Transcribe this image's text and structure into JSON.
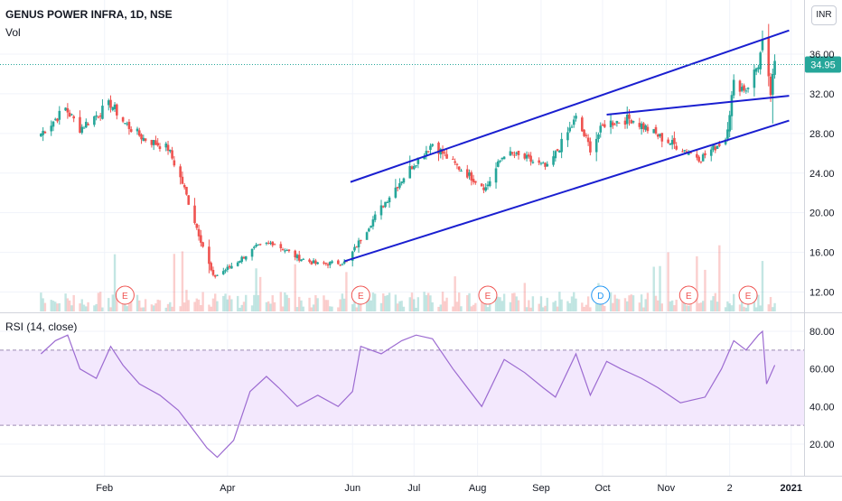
{
  "header": {
    "symbol_line": "GENUS POWER INFRA, 1D, NSE",
    "volume_label": "Vol",
    "rsi_label": "RSI (14, close)",
    "currency_button": "INR"
  },
  "colors": {
    "up": "#26a69a",
    "down": "#ef5350",
    "trendline": "#1a1fd0",
    "rsi_line": "#9c6bd1",
    "rsi_band": "#f3e8fd",
    "last_price": "#26a69a"
  },
  "chart_data": [
    {
      "type": "candlestick",
      "title": "GENUS POWER INFRA, 1D, NSE",
      "ylim": [
        11,
        39
      ],
      "y_ticks": [
        "12.00",
        "16.00",
        "20.00",
        "24.00",
        "28.00",
        "32.00",
        "36.00"
      ],
      "x_ticks": [
        "Feb",
        "Apr",
        "Jun",
        "Jul",
        "Aug",
        "Sep",
        "Oct",
        "Nov",
        "2",
        "2021"
      ],
      "last_price": "34.95",
      "anchor_closes": [
        [
          "2020-01-01",
          28.0
        ],
        [
          "2020-01-13",
          30.5
        ],
        [
          "2020-01-20",
          28.5
        ],
        [
          "2020-02-04",
          31.0
        ],
        [
          "2020-02-11",
          29.0
        ],
        [
          "2020-02-20",
          27.5
        ],
        [
          "2020-03-03",
          26.5
        ],
        [
          "2020-03-10",
          23.0
        ],
        [
          "2020-03-17",
          18.5
        ],
        [
          "2020-03-25",
          13.5
        ],
        [
          "2020-04-02",
          14.5
        ],
        [
          "2020-04-15",
          16.5
        ],
        [
          "2020-04-23",
          17.0
        ],
        [
          "2020-05-05",
          15.5
        ],
        [
          "2020-05-15",
          14.8
        ],
        [
          "2020-05-29",
          15.0
        ],
        [
          "2020-06-10",
          19.0
        ],
        [
          "2020-06-20",
          22.0
        ],
        [
          "2020-07-01",
          25.0
        ],
        [
          "2020-07-10",
          27.0
        ],
        [
          "2020-07-20",
          25.0
        ],
        [
          "2020-08-05",
          22.5
        ],
        [
          "2020-08-14",
          26.0
        ],
        [
          "2020-08-24",
          25.5
        ],
        [
          "2020-09-04",
          24.5
        ],
        [
          "2020-09-18",
          29.5
        ],
        [
          "2020-09-25",
          26.5
        ],
        [
          "2020-10-02",
          29.0
        ],
        [
          "2020-10-15",
          29.5
        ],
        [
          "2020-10-30",
          27.5
        ],
        [
          "2020-11-18",
          25.5
        ],
        [
          "2020-11-30",
          27.5
        ],
        [
          "2020-12-04",
          33.0
        ],
        [
          "2020-12-10",
          32.5
        ],
        [
          "2020-12-16",
          35.0
        ],
        [
          "2020-12-18",
          37.0
        ],
        [
          "2020-12-22",
          32.0
        ],
        [
          "2020-12-24",
          34.95
        ]
      ],
      "events": [
        {
          "date": "2020-02-11",
          "label": "E"
        },
        {
          "date": "2020-06-05",
          "label": "E"
        },
        {
          "date": "2020-08-06",
          "label": "E"
        },
        {
          "date": "2020-09-30",
          "label": "D"
        },
        {
          "date": "2020-11-12",
          "label": "E"
        },
        {
          "date": "2020-12-11",
          "label": "E"
        }
      ],
      "trendlines": [
        {
          "from": [
            "2020-05-31",
            23.1
          ],
          "to": [
            "2020-12-31",
            38.4
          ]
        },
        {
          "from": [
            "2020-05-28",
            15.1
          ],
          "to": [
            "2020-12-31",
            29.3
          ]
        },
        {
          "from": [
            "2020-10-03",
            29.9
          ],
          "to": [
            "2020-12-31",
            31.8
          ]
        }
      ]
    },
    {
      "type": "line",
      "title": "RSI (14, close)",
      "ylim": [
        5,
        90
      ],
      "y_ticks": [
        "20.00",
        "40.00",
        "60.00",
        "80.00"
      ],
      "band": [
        30,
        70
      ],
      "series": [
        {
          "points": [
            [
              "2020-01-01",
              68
            ],
            [
              "2020-01-08",
              75
            ],
            [
              "2020-01-14",
              78
            ],
            [
              "2020-01-20",
              60
            ],
            [
              "2020-01-28",
              55
            ],
            [
              "2020-02-04",
              72
            ],
            [
              "2020-02-10",
              62
            ],
            [
              "2020-02-18",
              52
            ],
            [
              "2020-02-28",
              46
            ],
            [
              "2020-03-08",
              38
            ],
            [
              "2020-03-15",
              28
            ],
            [
              "2020-03-22",
              18
            ],
            [
              "2020-03-27",
              13
            ],
            [
              "2020-04-04",
              22
            ],
            [
              "2020-04-12",
              48
            ],
            [
              "2020-04-20",
              56
            ],
            [
              "2020-04-26",
              50
            ],
            [
              "2020-05-05",
              40
            ],
            [
              "2020-05-15",
              46
            ],
            [
              "2020-05-25",
              40
            ],
            [
              "2020-06-01",
              48
            ],
            [
              "2020-06-05",
              72
            ],
            [
              "2020-06-15",
              68
            ],
            [
              "2020-06-25",
              75
            ],
            [
              "2020-07-02",
              78
            ],
            [
              "2020-07-10",
              76
            ],
            [
              "2020-07-20",
              60
            ],
            [
              "2020-08-03",
              40
            ],
            [
              "2020-08-14",
              65
            ],
            [
              "2020-08-24",
              58
            ],
            [
              "2020-09-02",
              50
            ],
            [
              "2020-09-08",
              45
            ],
            [
              "2020-09-18",
              68
            ],
            [
              "2020-09-25",
              46
            ],
            [
              "2020-10-03",
              64
            ],
            [
              "2020-10-10",
              60
            ],
            [
              "2020-10-20",
              55
            ],
            [
              "2020-10-28",
              50
            ],
            [
              "2020-11-08",
              42
            ],
            [
              "2020-11-20",
              45
            ],
            [
              "2020-11-28",
              60
            ],
            [
              "2020-12-04",
              75
            ],
            [
              "2020-12-10",
              70
            ],
            [
              "2020-12-16",
              78
            ],
            [
              "2020-12-18",
              80
            ],
            [
              "2020-12-20",
              52
            ],
            [
              "2020-12-24",
              62
            ]
          ]
        }
      ]
    }
  ]
}
